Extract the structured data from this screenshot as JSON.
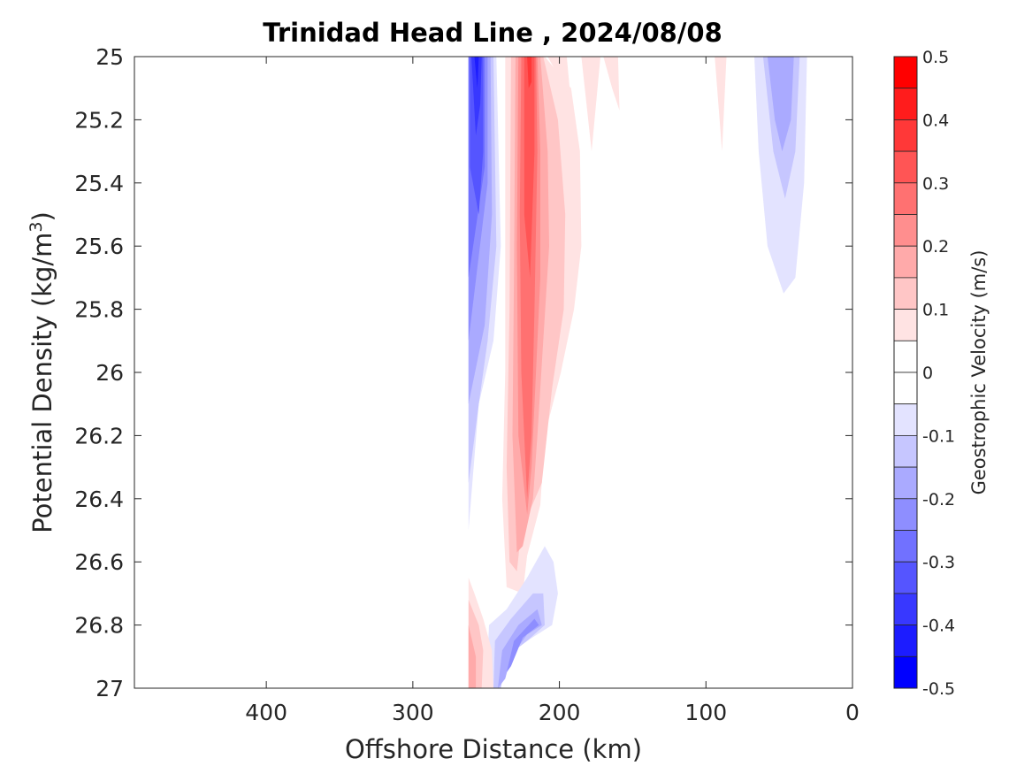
{
  "chart_data": {
    "type": "heatmap",
    "title": "Trinidad Head Line , 2024/08/08",
    "xlabel": "Offshore Distance (km)",
    "ylabel_main": "Potential Density (kg/m",
    "ylabel_sup": "3",
    "ylabel_close": ")",
    "xlim": [
      490,
      0
    ],
    "ylim": [
      25,
      27
    ],
    "y_reversed": true,
    "x_ticks": [
      400,
      300,
      200,
      100,
      0
    ],
    "y_ticks": [
      25,
      25.2,
      25.4,
      25.6,
      25.8,
      26,
      26.2,
      26.4,
      26.6,
      26.8,
      27
    ],
    "colorbar": {
      "label": "Geostrophic Velocity (m/s)",
      "range": [
        -0.5,
        0.5
      ],
      "ticks": [
        0.5,
        0.4,
        0.3,
        0.2,
        0.1,
        0,
        -0.1,
        -0.2,
        -0.3,
        -0.4,
        -0.5
      ],
      "levels": [
        {
          "lo": 0.45,
          "hi": 0.5,
          "color": "#ff0000"
        },
        {
          "lo": 0.4,
          "hi": 0.45,
          "color": "#ff1c1c"
        },
        {
          "lo": 0.35,
          "hi": 0.4,
          "color": "#ff3838"
        },
        {
          "lo": 0.3,
          "hi": 0.35,
          "color": "#ff5555"
        },
        {
          "lo": 0.25,
          "hi": 0.3,
          "color": "#ff7171"
        },
        {
          "lo": 0.2,
          "hi": 0.25,
          "color": "#ff8e8e"
        },
        {
          "lo": 0.15,
          "hi": 0.2,
          "color": "#ffaaaa"
        },
        {
          "lo": 0.1,
          "hi": 0.15,
          "color": "#ffc6c6"
        },
        {
          "lo": 0.05,
          "hi": 0.1,
          "color": "#ffe3e3"
        },
        {
          "lo": 0.0,
          "hi": 0.05,
          "color": "#ffffff"
        },
        {
          "lo": -0.05,
          "hi": 0.0,
          "color": "#ffffff"
        },
        {
          "lo": -0.1,
          "hi": -0.05,
          "color": "#e3e3ff"
        },
        {
          "lo": -0.15,
          "hi": -0.1,
          "color": "#c6c6ff"
        },
        {
          "lo": -0.2,
          "hi": -0.15,
          "color": "#aaaaff"
        },
        {
          "lo": -0.25,
          "hi": -0.2,
          "color": "#8e8eff"
        },
        {
          "lo": -0.3,
          "hi": -0.25,
          "color": "#7171ff"
        },
        {
          "lo": -0.35,
          "hi": -0.3,
          "color": "#5555ff"
        },
        {
          "lo": -0.4,
          "hi": -0.35,
          "color": "#3838ff"
        },
        {
          "lo": -0.45,
          "hi": -0.4,
          "color": "#1c1cff"
        },
        {
          "lo": -0.5,
          "hi": -0.45,
          "color": "#0000ff"
        }
      ]
    },
    "regions": [
      {
        "name": "blue-core-weak",
        "value": -0.1,
        "color": "#e3e3ff",
        "points": [
          [
            262,
            25
          ],
          [
            243,
            25
          ],
          [
            240,
            25.6
          ],
          [
            245,
            25.9
          ],
          [
            255,
            26.1
          ],
          [
            262,
            26.5
          ]
        ]
      },
      {
        "name": "blue-core-2",
        "value": -0.15,
        "color": "#c6c6ff",
        "points": [
          [
            262,
            25
          ],
          [
            245,
            25
          ],
          [
            243,
            25.6
          ],
          [
            249,
            25.9
          ],
          [
            255,
            26.1
          ],
          [
            262,
            26.35
          ]
        ]
      },
      {
        "name": "blue-core-3",
        "value": -0.2,
        "color": "#aaaaff",
        "points": [
          [
            262,
            25
          ],
          [
            247,
            25
          ],
          [
            246,
            25.5
          ],
          [
            251,
            25.85
          ],
          [
            262,
            26.1
          ]
        ]
      },
      {
        "name": "blue-core-4",
        "value": -0.25,
        "color": "#8e8eff",
        "points": [
          [
            262,
            25
          ],
          [
            249,
            25
          ],
          [
            249,
            25.4
          ],
          [
            262,
            25.9
          ]
        ]
      },
      {
        "name": "blue-core-5",
        "value": -0.3,
        "color": "#7171ff",
        "points": [
          [
            262,
            25
          ],
          [
            251,
            25
          ],
          [
            251,
            25.35
          ],
          [
            262,
            25.7
          ]
        ]
      },
      {
        "name": "blue-core-6",
        "value": -0.35,
        "color": "#5555ff",
        "points": [
          [
            261,
            25
          ],
          [
            252,
            25
          ],
          [
            252,
            25.3
          ],
          [
            255,
            25.5
          ],
          [
            261,
            25.35
          ]
        ]
      },
      {
        "name": "blue-core-7",
        "value": -0.4,
        "color": "#3838ff",
        "points": [
          [
            260,
            25
          ],
          [
            253,
            25
          ],
          [
            254,
            25.15
          ],
          [
            257,
            25.25
          ]
        ]
      },
      {
        "name": "blue-core-8",
        "value": -0.45,
        "color": "#1c1cff",
        "points": [
          [
            258,
            25
          ],
          [
            255,
            25
          ],
          [
            256,
            25.1
          ]
        ]
      },
      {
        "name": "red-jet-1",
        "value": 0.1,
        "color": "#ffe3e3",
        "points": [
          [
            237,
            25
          ],
          [
            210,
            25
          ],
          [
            192,
            25.1
          ],
          [
            186,
            25.3
          ],
          [
            185,
            25.6
          ],
          [
            190,
            25.8
          ],
          [
            199,
            26
          ],
          [
            210,
            26.2
          ],
          [
            213,
            26.42
          ],
          [
            222,
            26.58
          ],
          [
            225,
            26.7
          ],
          [
            236,
            26.68
          ],
          [
            239,
            26.4
          ],
          [
            237,
            26.0
          ]
        ]
      },
      {
        "name": "red-jet-2",
        "value": 0.15,
        "color": "#ffc6c6",
        "points": [
          [
            233,
            25
          ],
          [
            211,
            25
          ],
          [
            201,
            25.2
          ],
          [
            196,
            25.5
          ],
          [
            197,
            25.8
          ],
          [
            205,
            26.05
          ],
          [
            212,
            26.35
          ],
          [
            226,
            26.5
          ],
          [
            229,
            26.63
          ],
          [
            234,
            26.6
          ],
          [
            236,
            26.3
          ],
          [
            234,
            25.8
          ]
        ]
      },
      {
        "name": "red-jet-3",
        "value": 0.2,
        "color": "#ffaaaa",
        "points": [
          [
            230,
            25
          ],
          [
            213,
            25
          ],
          [
            208,
            25.3
          ],
          [
            207,
            25.6
          ],
          [
            211,
            25.9
          ],
          [
            215,
            26.2
          ],
          [
            218,
            26.4
          ],
          [
            225,
            26.55
          ],
          [
            229,
            26.57
          ],
          [
            232,
            26.2
          ],
          [
            231,
            25.7
          ]
        ]
      },
      {
        "name": "red-jet-4",
        "value": 0.25,
        "color": "#ff8e8e",
        "points": [
          [
            228,
            25
          ],
          [
            215,
            25
          ],
          [
            213,
            25.3
          ],
          [
            213,
            25.7
          ],
          [
            216,
            26.0
          ],
          [
            219,
            26.3
          ],
          [
            222,
            26.45
          ],
          [
            228,
            26.2
          ],
          [
            229,
            25.6
          ]
        ]
      },
      {
        "name": "red-jet-5",
        "value": 0.3,
        "color": "#ff7171",
        "points": [
          [
            226,
            25
          ],
          [
            216,
            25
          ],
          [
            215,
            25.3
          ],
          [
            217,
            25.8
          ],
          [
            219,
            26.2
          ],
          [
            222,
            26.4
          ],
          [
            226,
            26.0
          ],
          [
            227,
            25.5
          ]
        ]
      },
      {
        "name": "red-jet-6",
        "value": 0.35,
        "color": "#ff5555",
        "points": [
          [
            224,
            25
          ],
          [
            217,
            25
          ],
          [
            217,
            25.3
          ],
          [
            220,
            25.7
          ],
          [
            224,
            25.5
          ]
        ]
      },
      {
        "name": "red-jet-7",
        "value": 0.4,
        "color": "#ff3838",
        "points": [
          [
            222,
            25
          ],
          [
            219,
            25
          ],
          [
            219,
            25.08
          ],
          [
            221,
            25.1
          ]
        ]
      },
      {
        "name": "red-outer-1",
        "value": 0.05,
        "color": "#ffe3e3",
        "points": [
          [
            208,
            25
          ],
          [
            195,
            25
          ],
          [
            192,
            25.15
          ],
          [
            196,
            25.1
          ]
        ]
      },
      {
        "name": "red-outer-2",
        "value": 0.05,
        "color": "#ffe3e3",
        "points": [
          [
            185,
            25
          ],
          [
            172,
            25
          ],
          [
            178,
            25.3
          ]
        ]
      },
      {
        "name": "red-outer-3",
        "value": 0.05,
        "color": "#ffe3e3",
        "points": [
          [
            170,
            25
          ],
          [
            160,
            25
          ],
          [
            159,
            25.17
          ],
          [
            164,
            25.1
          ]
        ]
      },
      {
        "name": "red-outer-4",
        "value": 0.05,
        "color": "#ffe3e3",
        "points": [
          [
            94,
            25
          ],
          [
            86,
            25
          ],
          [
            89,
            25.3
          ]
        ]
      },
      {
        "name": "blue-east-1",
        "value": -0.1,
        "color": "#e3e3ff",
        "points": [
          [
            67,
            25
          ],
          [
            31,
            25
          ],
          [
            33,
            25.4
          ],
          [
            39,
            25.7
          ],
          [
            47,
            25.75
          ],
          [
            58,
            25.6
          ],
          [
            64,
            25.3
          ]
        ]
      },
      {
        "name": "blue-east-2",
        "value": -0.15,
        "color": "#c6c6ff",
        "points": [
          [
            61,
            25
          ],
          [
            36,
            25
          ],
          [
            39,
            25.3
          ],
          [
            46,
            25.45
          ],
          [
            54,
            25.3
          ]
        ]
      },
      {
        "name": "blue-east-3",
        "value": -0.2,
        "color": "#aaaaff",
        "points": [
          [
            58,
            25
          ],
          [
            40,
            25
          ],
          [
            42,
            25.2
          ],
          [
            48,
            25.3
          ],
          [
            53,
            25.2
          ]
        ]
      },
      {
        "name": "blue-deep-1",
        "value": -0.1,
        "color": "#e3e3ff",
        "points": [
          [
            222,
            26.65
          ],
          [
            210,
            26.55
          ],
          [
            204,
            26.6
          ],
          [
            201,
            26.7
          ],
          [
            205,
            26.8
          ],
          [
            222,
            26.85
          ],
          [
            237,
            26.9
          ],
          [
            240,
            27
          ],
          [
            250,
            27
          ],
          [
            248,
            26.8
          ],
          [
            236,
            26.75
          ]
        ]
      },
      {
        "name": "blue-deep-2",
        "value": -0.15,
        "color": "#c6c6ff",
        "points": [
          [
            218,
            26.7
          ],
          [
            211,
            26.7
          ],
          [
            210,
            26.8
          ],
          [
            222,
            26.85
          ],
          [
            236,
            26.9
          ],
          [
            240,
            27
          ],
          [
            245,
            27
          ],
          [
            244,
            26.85
          ],
          [
            233,
            26.78
          ]
        ]
      },
      {
        "name": "blue-deep-3",
        "value": -0.2,
        "color": "#aaaaff",
        "points": [
          [
            215,
            26.75
          ],
          [
            212,
            26.8
          ],
          [
            222,
            26.83
          ],
          [
            233,
            26.9
          ],
          [
            237,
            26.97
          ],
          [
            242,
            27
          ],
          [
            239,
            26.88
          ],
          [
            228,
            26.8
          ]
        ]
      },
      {
        "name": "blue-deep-4",
        "value": -0.25,
        "color": "#8e8eff",
        "points": [
          [
            217,
            26.78
          ],
          [
            214,
            26.8
          ],
          [
            225,
            26.84
          ],
          [
            233,
            26.93
          ],
          [
            236,
            26.95
          ],
          [
            231,
            26.85
          ]
        ]
      },
      {
        "name": "red-deep-1",
        "value": 0.1,
        "color": "#ffe3e3",
        "points": [
          [
            262,
            26.65
          ],
          [
            262,
            27
          ],
          [
            245,
            27
          ],
          [
            246,
            26.88
          ],
          [
            252,
            26.78
          ],
          [
            258,
            26.7
          ]
        ]
      },
      {
        "name": "red-deep-2",
        "value": 0.15,
        "color": "#ffc6c6",
        "points": [
          [
            262,
            26.72
          ],
          [
            262,
            27
          ],
          [
            253,
            27
          ],
          [
            252,
            26.88
          ],
          [
            255,
            26.8
          ]
        ]
      },
      {
        "name": "red-deep-3",
        "value": 0.2,
        "color": "#ffaaaa",
        "points": [
          [
            262,
            26.8
          ],
          [
            262,
            27
          ],
          [
            257,
            27
          ],
          [
            257,
            26.9
          ]
        ]
      }
    ]
  }
}
